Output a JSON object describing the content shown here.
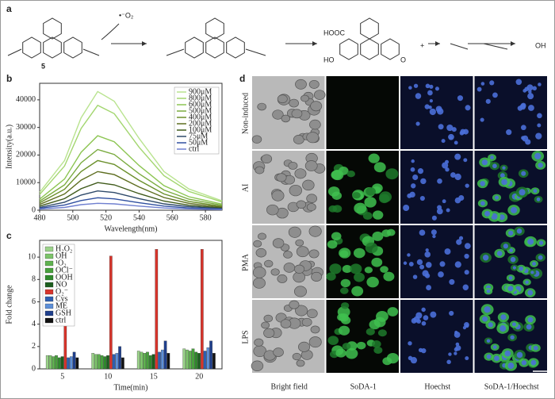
{
  "panels": [
    "a",
    "b",
    "c",
    "d"
  ],
  "scheme": {
    "compound": "5",
    "reagent": "•⁻O₂",
    "acid": "HOOC",
    "hydroxy": "HO",
    "ketone": "O",
    "plus": "+",
    "product": "OH"
  },
  "chart_data": [
    {
      "type": "line",
      "xlabel": "Wavelength(nm)",
      "ylabel": "Intensity(a.u.)",
      "x": [
        480,
        495,
        505,
        515,
        525,
        540,
        555,
        570,
        590
      ],
      "xlim": [
        480,
        590
      ],
      "xticks": [
        480,
        500,
        520,
        540,
        560,
        580
      ],
      "ylim": [
        0,
        46000
      ],
      "yticks": [
        0,
        10000,
        20000,
        30000,
        40000
      ],
      "legend": "upper right",
      "series": [
        {
          "name": "900μM",
          "color": "#b9e38f",
          "values": [
            6500,
            18000,
            33500,
            43000,
            39500,
            26000,
            14000,
            7700,
            3400
          ]
        },
        {
          "name": "800μM",
          "color": "#a3d66f",
          "values": [
            5700,
            16000,
            29600,
            38000,
            35000,
            22800,
            12500,
            6800,
            3000
          ]
        },
        {
          "name": "600μM",
          "color": "#8cc552",
          "values": [
            4000,
            11300,
            21000,
            27000,
            24800,
            16200,
            8900,
            4900,
            2200
          ]
        },
        {
          "name": "500μM",
          "color": "#7aab3f",
          "values": [
            3300,
            9200,
            17200,
            22000,
            20200,
            13200,
            7300,
            4000,
            1800
          ]
        },
        {
          "name": "400μM",
          "color": "#6a8f2a",
          "values": [
            2700,
            7600,
            14000,
            18000,
            16600,
            10800,
            5900,
            3200,
            1400
          ]
        },
        {
          "name": "200μM",
          "color": "#5e6e20",
          "values": [
            2100,
            5900,
            10900,
            14000,
            12900,
            8400,
            4600,
            2500,
            1100
          ]
        },
        {
          "name": "100μM",
          "color": "#3f5a1a",
          "values": [
            1500,
            4200,
            7800,
            10000,
            9200,
            6000,
            3300,
            1800,
            800
          ]
        },
        {
          "name": "75μM",
          "color": "#2f4a6a",
          "values": [
            1000,
            2900,
            5500,
            7000,
            6400,
            4200,
            2300,
            1300,
            600
          ]
        },
        {
          "name": "50μM",
          "color": "#3050a0",
          "values": [
            700,
            1900,
            3500,
            4500,
            4100,
            2700,
            1500,
            800,
            400
          ]
        },
        {
          "name": "ctrl",
          "color": "#7080d0",
          "values": [
            400,
            1000,
            2000,
            2500,
            2300,
            1500,
            800,
            500,
            200
          ]
        }
      ]
    },
    {
      "type": "bar",
      "xlabel": "Time(min)",
      "ylabel": "Fold change",
      "categories": [
        "5",
        "10",
        "15",
        "20"
      ],
      "ylim": [
        0,
        11.5
      ],
      "yticks": [
        0,
        2,
        4,
        6,
        8,
        10
      ],
      "legend": "upper left",
      "series": [
        {
          "name": "H₂O₂",
          "color": "#9bd28a",
          "values": [
            1.2,
            1.4,
            1.6,
            1.8
          ]
        },
        {
          "name": "OH",
          "color": "#7cc46a",
          "values": [
            1.2,
            1.3,
            1.5,
            1.7
          ]
        },
        {
          "name": "¹O₂",
          "color": "#5fb24f",
          "values": [
            1.1,
            1.3,
            1.4,
            1.6
          ]
        },
        {
          "name": "OCl⁻",
          "color": "#47a03c",
          "values": [
            1.2,
            1.2,
            1.5,
            1.8
          ]
        },
        {
          "name": "OOH",
          "color": "#2f8a2c",
          "values": [
            1.0,
            1.1,
            1.2,
            1.5
          ]
        },
        {
          "name": "NO",
          "color": "#1d5e1e",
          "values": [
            1.1,
            1.2,
            1.3,
            1.4
          ]
        },
        {
          "name": "O₂⁻",
          "color": "#d8342b",
          "values": [
            6.4,
            10.1,
            10.7,
            10.7
          ]
        },
        {
          "name": "Cys",
          "color": "#2e5fb0",
          "values": [
            1.0,
            1.3,
            1.5,
            1.6
          ]
        },
        {
          "name": "ME",
          "color": "#5d8fd8",
          "values": [
            1.1,
            1.4,
            1.7,
            1.9
          ]
        },
        {
          "name": "GSH",
          "color": "#1f3f8c",
          "values": [
            1.5,
            2.0,
            2.5,
            2.5
          ]
        },
        {
          "name": "ctrl",
          "color": "#111111",
          "values": [
            1.0,
            1.0,
            1.4,
            1.4
          ]
        }
      ]
    }
  ],
  "microscopy": {
    "rows": [
      "Non-induced",
      "AI",
      "PMA",
      "LPS"
    ],
    "columns": [
      "Bright field",
      "SoDA-1",
      "Hoechst",
      "SoDA-1/Hoechst"
    ]
  }
}
